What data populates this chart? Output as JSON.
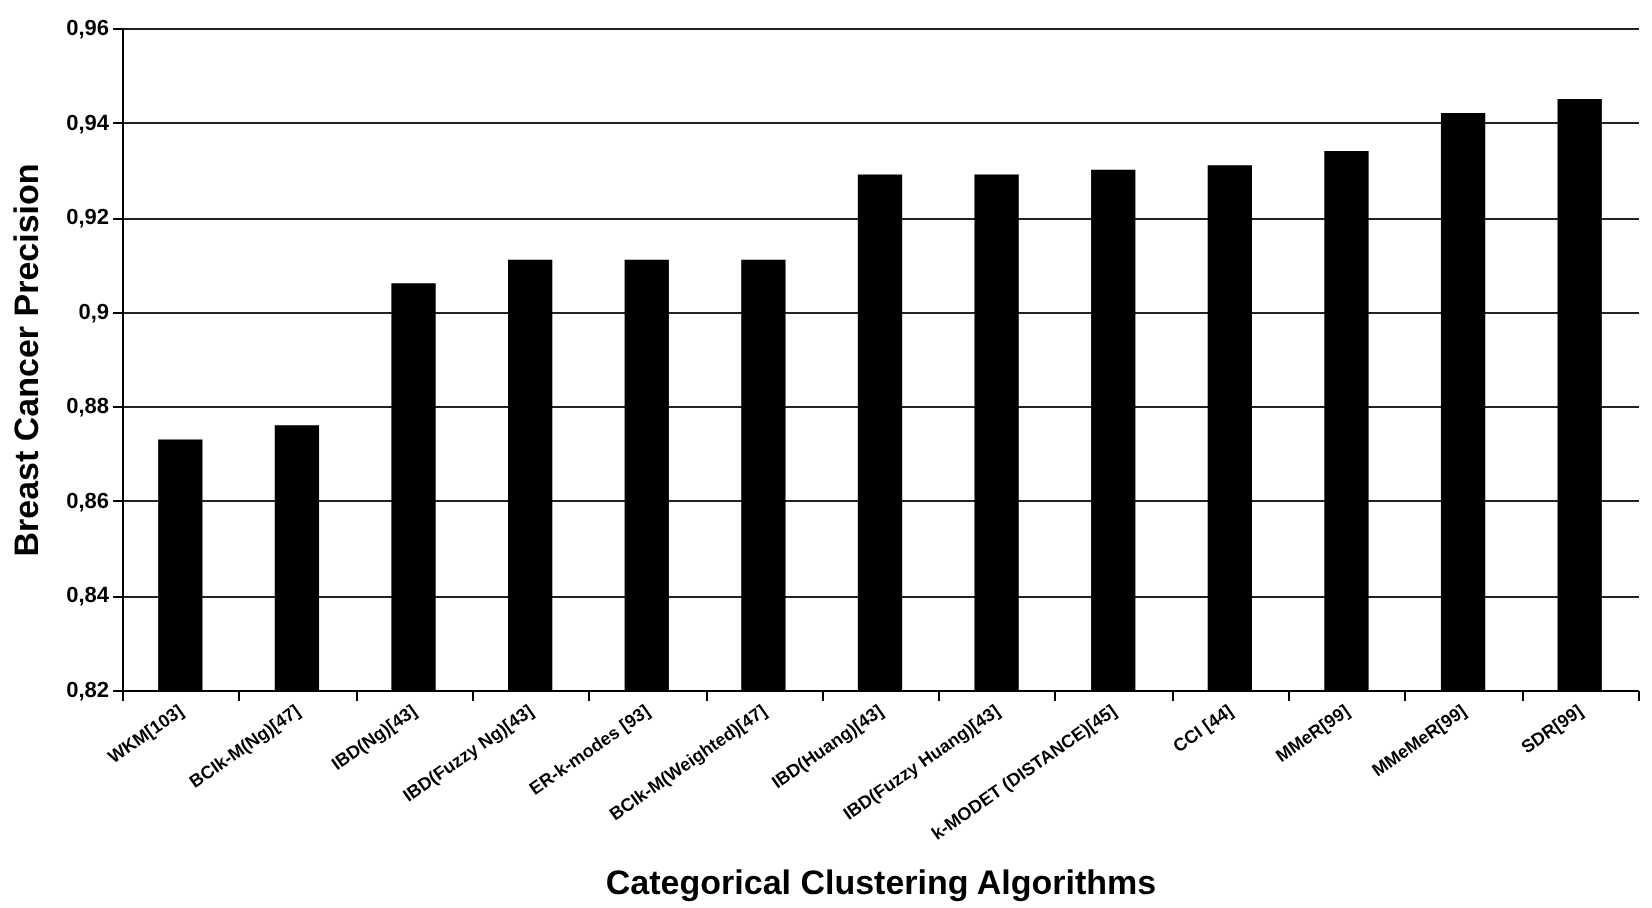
{
  "chart_data": {
    "type": "bar",
    "xlabel": "Categorical Clustering Algorithms",
    "ylabel": "Breast Cancer Precision",
    "categories": [
      "WKM[103]",
      "BCIk-M(Ng)[47]",
      "IBD(Ng)[43]",
      "IBD(Fuzzy Ng)[43]",
      "ER-k-modes [93]",
      "BCIk-M(Weighted)[47]",
      "IBD(Huang)[43]",
      "IBD(Fuzzy Huang)[43]",
      "k-MODET (DISTANCE)[45]",
      "CCI [44]",
      "MMeR[99]",
      "MMeMeR[99]",
      "SDR[99]"
    ],
    "values": [
      0.873,
      0.876,
      0.906,
      0.911,
      0.911,
      0.911,
      0.929,
      0.929,
      0.93,
      0.931,
      0.934,
      0.942,
      0.945
    ],
    "color": "#000000",
    "ylim": [
      0.82,
      0.96
    ],
    "yticks": [
      {
        "value": 0.82,
        "label": "0,82"
      },
      {
        "value": 0.84,
        "label": "0,84"
      },
      {
        "value": 0.86,
        "label": "0,86"
      },
      {
        "value": 0.88,
        "label": "0,88"
      },
      {
        "value": 0.9,
        "label": "0,9"
      },
      {
        "value": 0.92,
        "label": "0,92"
      },
      {
        "value": 0.94,
        "label": "0,94"
      },
      {
        "value": 0.96,
        "label": "0,96"
      }
    ],
    "grid": "y"
  }
}
